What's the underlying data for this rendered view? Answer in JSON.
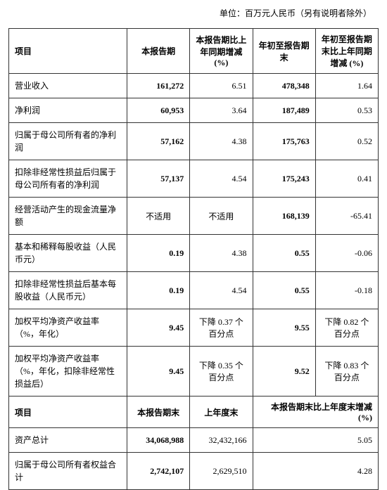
{
  "unit_label": "单位：百万元人民币（另有说明者除外）",
  "table1": {
    "headers": {
      "item": "项目",
      "period": "本报告期",
      "change": "本报告期比上年同期增减 (%)",
      "ytd": "年初至报告期末",
      "ytd_change": "年初至报告期末比上年同期增减 (%)"
    },
    "rows": [
      {
        "label": "营业收入",
        "v1": "161,272",
        "v2": "6.51",
        "v3": "478,348",
        "v4": "1.64"
      },
      {
        "label": "净利润",
        "v1": "60,953",
        "v2": "3.64",
        "v3": "187,489",
        "v4": "0.53"
      },
      {
        "label": "归属于母公司所有者的净利润",
        "v1": "57,162",
        "v2": "4.38",
        "v3": "175,763",
        "v4": "0.52"
      },
      {
        "label": "扣除非经常性损益后归属于母公司所有者的净利润",
        "v1": "57,137",
        "v2": "4.54",
        "v3": "175,243",
        "v4": "0.41"
      },
      {
        "label": "经营活动产生的现金流量净额",
        "v1": "不适用",
        "v2": "不适用",
        "v3": "168,139",
        "v4": "-65.41"
      },
      {
        "label": "基本和稀释每股收益（人民币元）",
        "v1": "0.19",
        "v2": "4.38",
        "v3": "0.55",
        "v4": "-0.06"
      },
      {
        "label": "扣除非经常性损益后基本每股收益（人民币元）",
        "v1": "0.19",
        "v2": "4.54",
        "v3": "0.55",
        "v4": "-0.18"
      },
      {
        "label": "加权平均净资产收益率（%，年化）",
        "v1": "9.45",
        "v2": "下降 0.37 个百分点",
        "v3": "9.55",
        "v4": "下降 0.82 个百分点"
      },
      {
        "label": "加权平均净资产收益率（%，年化，扣除非经常性损益后）",
        "v1": "9.45",
        "v2": "下降 0.35 个百分点",
        "v3": "9.52",
        "v4": "下降 0.83 个百分点"
      }
    ]
  },
  "table2": {
    "headers": {
      "item": "项目",
      "period_end": "本报告期末",
      "prev_year": "上年度末",
      "change": "本报告期末比上年度末增减 (%)"
    },
    "rows": [
      {
        "label": "资产总计",
        "v1": "34,068,988",
        "v2": "32,432,166",
        "v3": "5.05"
      },
      {
        "label": "归属于母公司所有者权益合计",
        "v1": "2,742,107",
        "v2": "2,629,510",
        "v3": "4.28"
      }
    ]
  },
  "v2_center_rows": [
    4,
    7,
    8
  ]
}
